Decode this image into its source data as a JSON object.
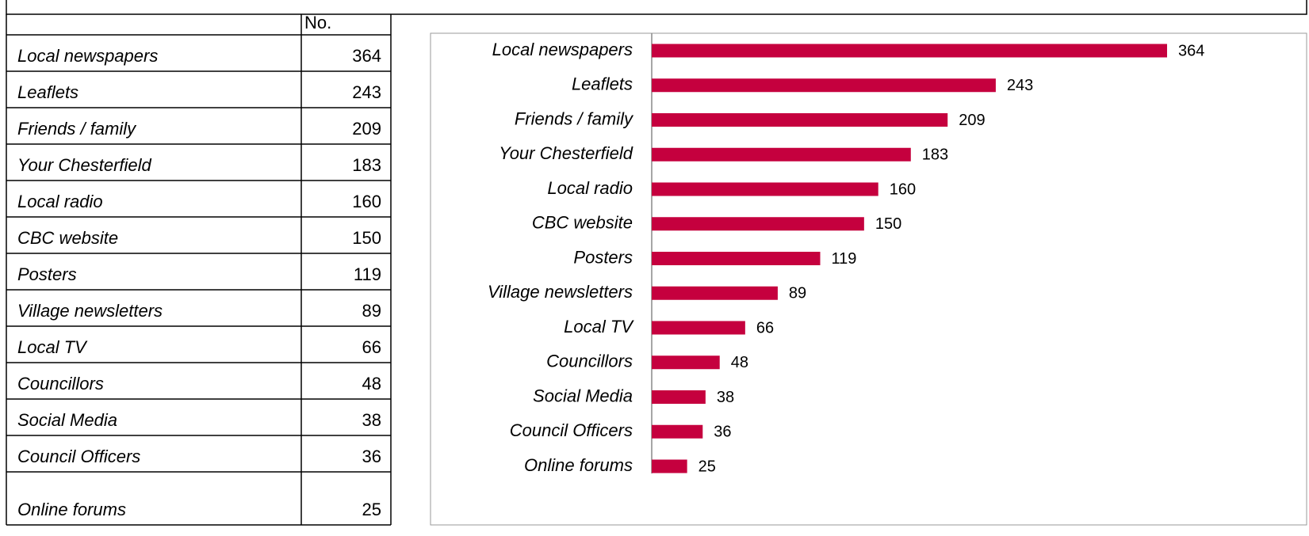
{
  "table": {
    "header": "No.",
    "rows": [
      [
        "Local newspapers",
        364
      ],
      [
        "Leaflets",
        243
      ],
      [
        "Friends / family",
        209
      ],
      [
        "Your Chesterfield",
        183
      ],
      [
        "Local radio",
        160
      ],
      [
        "CBC website",
        150
      ],
      [
        "Posters",
        119
      ],
      [
        "Village newsletters",
        89
      ],
      [
        "Local TV",
        66
      ],
      [
        "Councillors",
        48
      ],
      [
        "Social Media",
        38
      ],
      [
        "Council Officers",
        36
      ],
      [
        "Online forums",
        25
      ]
    ]
  },
  "chart_data": {
    "type": "bar",
    "orientation": "horizontal",
    "categories": [
      "Local newspapers",
      "Leaflets",
      "Friends / family",
      "Your Chesterfield",
      "Local radio",
      "CBC website",
      "Posters",
      "Village newsletters",
      "Local TV",
      "Councillors",
      "Social Media",
      "Council Officers",
      "Online forums"
    ],
    "values": [
      364,
      243,
      209,
      183,
      160,
      150,
      119,
      89,
      66,
      48,
      38,
      36,
      25
    ],
    "color": "#c5003e"
  }
}
